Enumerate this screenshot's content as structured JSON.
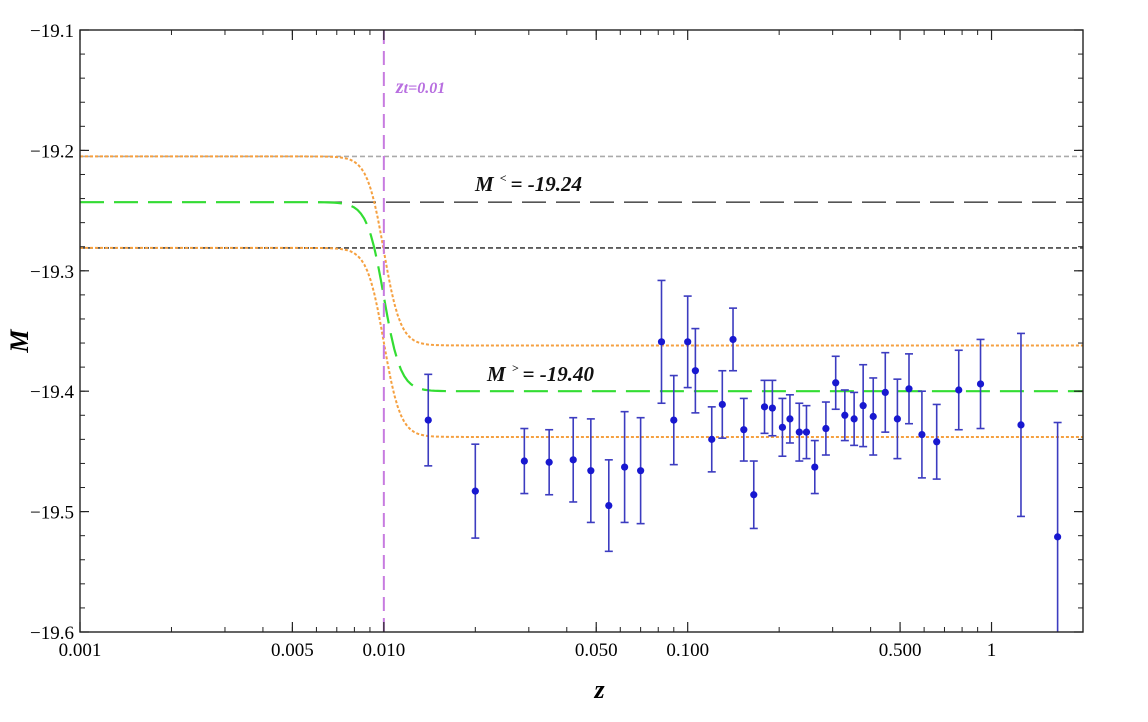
{
  "chart_data": {
    "type": "scatter",
    "x_scale": "log",
    "xlabel": "z",
    "ylabel": "M",
    "xlim": [
      0.001,
      2.0
    ],
    "ylim": [
      -19.6,
      -19.1
    ],
    "x_ticks": [
      {
        "value": 0.001,
        "label": "0.001"
      },
      {
        "value": 0.005,
        "label": "0.005"
      },
      {
        "value": 0.01,
        "label": "0.010"
      },
      {
        "value": 0.05,
        "label": "0.050"
      },
      {
        "value": 0.1,
        "label": "0.100"
      },
      {
        "value": 0.5,
        "label": "0.500"
      },
      {
        "value": 1,
        "label": "1"
      }
    ],
    "y_ticks": [
      {
        "value": -19.1,
        "label": "−19.1"
      },
      {
        "value": -19.2,
        "label": "−19.2"
      },
      {
        "value": -19.3,
        "label": "−19.3"
      },
      {
        "value": -19.4,
        "label": "−19.4"
      },
      {
        "value": -19.5,
        "label": "−19.5"
      },
      {
        "value": -19.6,
        "label": "−19.6"
      }
    ],
    "transition": {
      "z_t": 0.01,
      "label": "zt=0.01",
      "label_main": "z",
      "label_sub": "t=0.01",
      "color": "#c77be0"
    },
    "annotations": {
      "low": {
        "prefix": "M",
        "sup": "<",
        "suffix": "= -19.24",
        "value": -19.24
      },
      "high": {
        "prefix": "M",
        "sup": ">",
        "suffix": "= -19.40",
        "value": -19.4
      }
    },
    "reference_lines": [
      {
        "name": "upper-1sigma-low",
        "y": -19.205,
        "color": "#aaaaaa",
        "dash": "5,3"
      },
      {
        "name": "mean-low",
        "y": -19.243,
        "color": "#555555",
        "dash": "24,10"
      },
      {
        "name": "lower-1sigma-low",
        "y": -19.281,
        "color": "#444444",
        "dash": "5,3"
      }
    ],
    "model": {
      "low_mean": -19.243,
      "high_mean": -19.4,
      "low_upper": -19.205,
      "low_lower": -19.281,
      "high_upper": -19.362,
      "high_lower": -19.438,
      "mean_color": "#33dd33",
      "band_color": "#f5a040"
    },
    "points": [
      {
        "z": 0.014,
        "y": -19.424,
        "err": 0.038
      },
      {
        "z": 0.02,
        "y": -19.483,
        "err": 0.039
      },
      {
        "z": 0.029,
        "y": -19.458,
        "err": 0.027
      },
      {
        "z": 0.035,
        "y": -19.459,
        "err": 0.027
      },
      {
        "z": 0.042,
        "y": -19.457,
        "err": 0.035
      },
      {
        "z": 0.048,
        "y": -19.466,
        "err": 0.043
      },
      {
        "z": 0.055,
        "y": -19.495,
        "err": 0.038
      },
      {
        "z": 0.062,
        "y": -19.463,
        "err": 0.046
      },
      {
        "z": 0.07,
        "y": -19.466,
        "err": 0.044
      },
      {
        "z": 0.082,
        "y": -19.359,
        "err": 0.051
      },
      {
        "z": 0.09,
        "y": -19.424,
        "err": 0.037
      },
      {
        "z": 0.1,
        "y": -19.359,
        "err": 0.038
      },
      {
        "z": 0.106,
        "y": -19.383,
        "err": 0.035
      },
      {
        "z": 0.12,
        "y": -19.44,
        "err": 0.027
      },
      {
        "z": 0.13,
        "y": -19.411,
        "err": 0.028
      },
      {
        "z": 0.141,
        "y": -19.357,
        "err": 0.026
      },
      {
        "z": 0.153,
        "y": -19.432,
        "err": 0.026
      },
      {
        "z": 0.165,
        "y": -19.486,
        "err": 0.028
      },
      {
        "z": 0.179,
        "y": -19.413,
        "err": 0.022
      },
      {
        "z": 0.19,
        "y": -19.414,
        "err": 0.023
      },
      {
        "z": 0.205,
        "y": -19.43,
        "err": 0.024
      },
      {
        "z": 0.217,
        "y": -19.423,
        "err": 0.02
      },
      {
        "z": 0.233,
        "y": -19.434,
        "err": 0.024
      },
      {
        "z": 0.246,
        "y": -19.434,
        "err": 0.022
      },
      {
        "z": 0.262,
        "y": -19.463,
        "err": 0.022
      },
      {
        "z": 0.285,
        "y": -19.431,
        "err": 0.022
      },
      {
        "z": 0.307,
        "y": -19.393,
        "err": 0.022
      },
      {
        "z": 0.329,
        "y": -19.42,
        "err": 0.021
      },
      {
        "z": 0.353,
        "y": -19.423,
        "err": 0.022
      },
      {
        "z": 0.378,
        "y": -19.412,
        "err": 0.034
      },
      {
        "z": 0.408,
        "y": -19.421,
        "err": 0.032
      },
      {
        "z": 0.447,
        "y": -19.401,
        "err": 0.033
      },
      {
        "z": 0.49,
        "y": -19.423,
        "err": 0.033
      },
      {
        "z": 0.535,
        "y": -19.398,
        "err": 0.029
      },
      {
        "z": 0.59,
        "y": -19.436,
        "err": 0.036
      },
      {
        "z": 0.66,
        "y": -19.442,
        "err": 0.031
      },
      {
        "z": 0.78,
        "y": -19.399,
        "err": 0.033
      },
      {
        "z": 0.92,
        "y": -19.394,
        "err": 0.037
      },
      {
        "z": 1.25,
        "y": -19.428,
        "err": 0.076
      },
      {
        "z": 1.65,
        "y": -19.521,
        "err": 0.095
      }
    ],
    "point_color": "#1818d0",
    "errorbar_color": "#3c3cc0"
  }
}
